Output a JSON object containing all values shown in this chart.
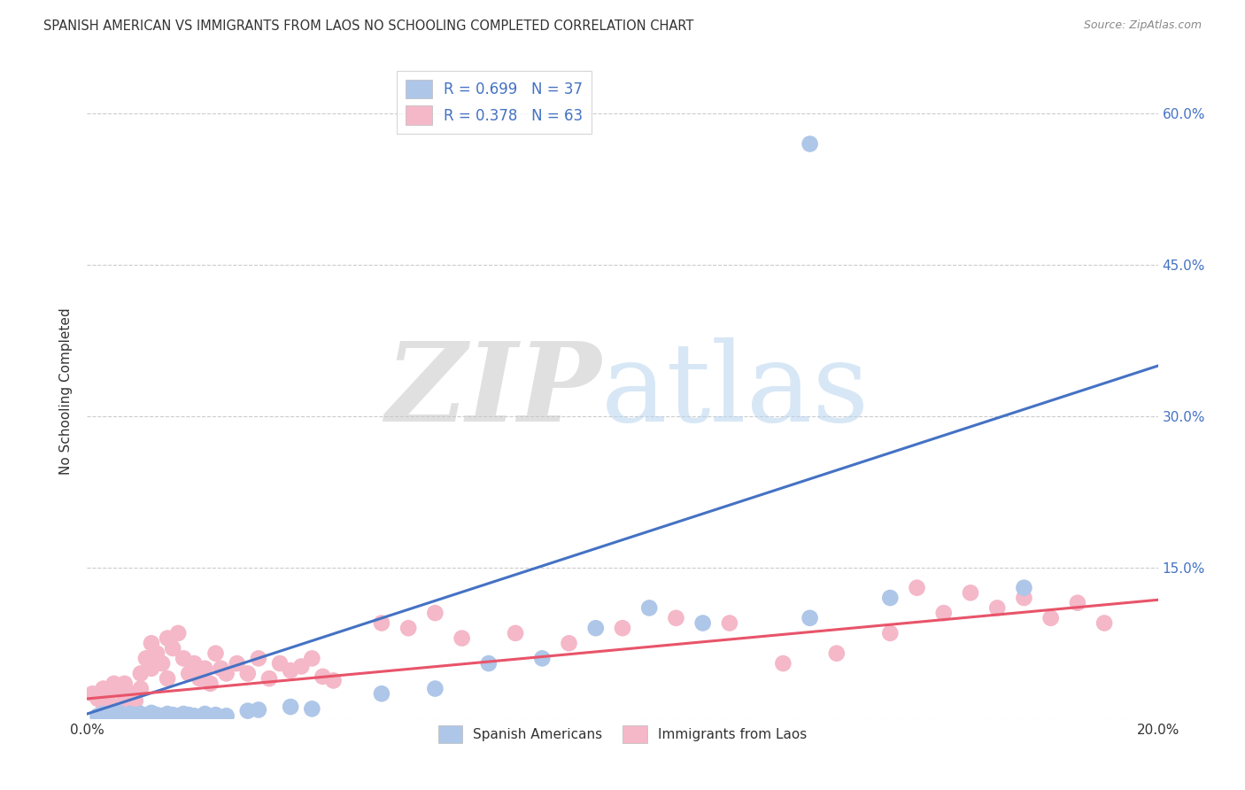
{
  "title": "SPANISH AMERICAN VS IMMIGRANTS FROM LAOS NO SCHOOLING COMPLETED CORRELATION CHART",
  "source": "Source: ZipAtlas.com",
  "ylabel": "No Schooling Completed",
  "xlim": [
    0.0,
    0.2
  ],
  "ylim": [
    0.0,
    0.65
  ],
  "series1_name": "Spanish Americans",
  "series1_color": "#aec6e8",
  "series1_edge_color": "#7aadd4",
  "series1_line_color": "#4472c4",
  "series1_R": 0.699,
  "series1_N": 37,
  "series2_name": "Immigrants from Laos",
  "series2_color": "#f4b8c8",
  "series2_edge_color": "#e899aa",
  "series2_line_color": "#e8546a",
  "series2_R": 0.378,
  "series2_N": 63,
  "background_color": "#ffffff",
  "grid_color": "#cccccc",
  "axis_label_color": "#4472c4",
  "blue_line_x0": 0.0,
  "blue_line_y0": 0.005,
  "blue_line_x1": 0.2,
  "blue_line_y1": 0.35,
  "pink_line_x0": 0.0,
  "pink_line_y0": 0.02,
  "pink_line_x1": 0.2,
  "pink_line_y1": 0.118,
  "scatter1_x": [
    0.002,
    0.003,
    0.004,
    0.005,
    0.006,
    0.007,
    0.008,
    0.009,
    0.01,
    0.011,
    0.012,
    0.013,
    0.014,
    0.015,
    0.016,
    0.017,
    0.018,
    0.019,
    0.02,
    0.022,
    0.024,
    0.026,
    0.03,
    0.032,
    0.038,
    0.042,
    0.055,
    0.065,
    0.075,
    0.085,
    0.095,
    0.105,
    0.115,
    0.135,
    0.15,
    0.175,
    0.135
  ],
  "scatter1_y": [
    0.003,
    0.005,
    0.002,
    0.004,
    0.006,
    0.003,
    0.005,
    0.004,
    0.005,
    0.003,
    0.006,
    0.004,
    0.003,
    0.005,
    0.004,
    0.003,
    0.005,
    0.004,
    0.003,
    0.005,
    0.004,
    0.003,
    0.008,
    0.009,
    0.012,
    0.01,
    0.025,
    0.03,
    0.055,
    0.06,
    0.09,
    0.11,
    0.095,
    0.1,
    0.12,
    0.13,
    0.57
  ],
  "scatter2_x": [
    0.001,
    0.002,
    0.003,
    0.003,
    0.004,
    0.005,
    0.005,
    0.006,
    0.007,
    0.007,
    0.008,
    0.009,
    0.01,
    0.01,
    0.011,
    0.012,
    0.012,
    0.013,
    0.014,
    0.015,
    0.015,
    0.016,
    0.017,
    0.018,
    0.019,
    0.02,
    0.021,
    0.022,
    0.023,
    0.024,
    0.025,
    0.026,
    0.028,
    0.03,
    0.032,
    0.034,
    0.036,
    0.038,
    0.04,
    0.042,
    0.044,
    0.046,
    0.055,
    0.06,
    0.065,
    0.07,
    0.08,
    0.09,
    0.1,
    0.11,
    0.12,
    0.13,
    0.14,
    0.15,
    0.16,
    0.17,
    0.175,
    0.18,
    0.185,
    0.19,
    0.155,
    0.165,
    0.005
  ],
  "scatter2_y": [
    0.025,
    0.02,
    0.03,
    0.015,
    0.025,
    0.035,
    0.012,
    0.028,
    0.02,
    0.035,
    0.025,
    0.018,
    0.03,
    0.045,
    0.06,
    0.05,
    0.075,
    0.065,
    0.055,
    0.08,
    0.04,
    0.07,
    0.085,
    0.06,
    0.045,
    0.055,
    0.04,
    0.05,
    0.035,
    0.065,
    0.05,
    0.045,
    0.055,
    0.045,
    0.06,
    0.04,
    0.055,
    0.048,
    0.052,
    0.06,
    0.042,
    0.038,
    0.095,
    0.09,
    0.105,
    0.08,
    0.085,
    0.075,
    0.09,
    0.1,
    0.095,
    0.055,
    0.065,
    0.085,
    0.105,
    0.11,
    0.12,
    0.1,
    0.115,
    0.095,
    0.13,
    0.125,
    0.005
  ]
}
